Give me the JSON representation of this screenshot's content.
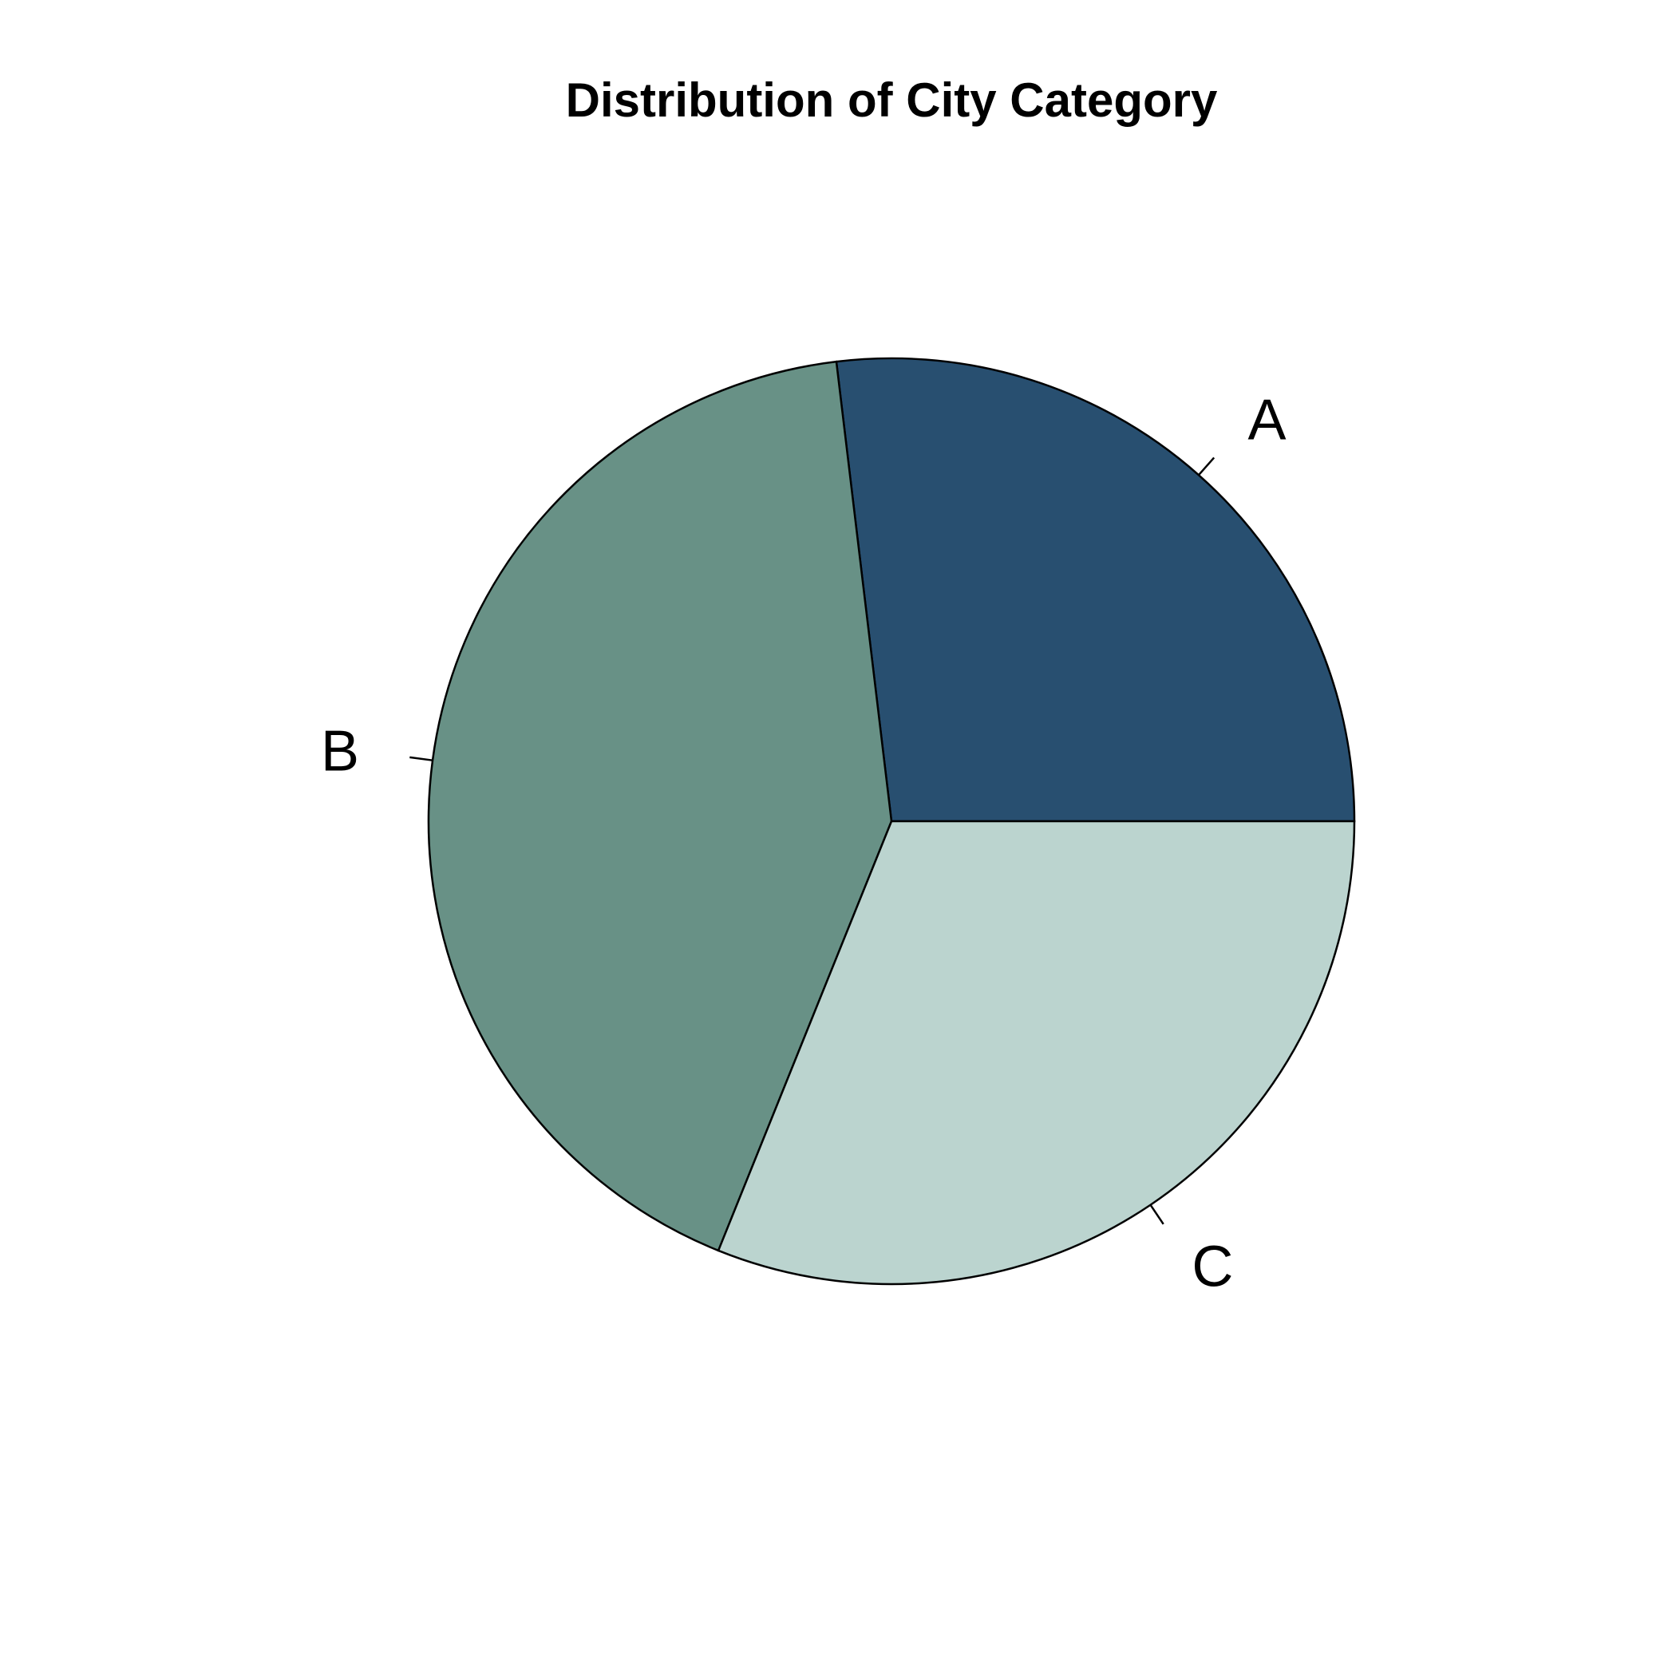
{
  "chart_data": {
    "type": "pie",
    "title": "Distribution of City Category",
    "categories": [
      "A",
      "B",
      "C"
    ],
    "values": [
      26.9,
      42.0,
      31.1
    ],
    "start_angle_deg": 0,
    "direction": "counterclockwise",
    "colors": [
      "#284F70",
      "#689186",
      "#BBD4CF"
    ],
    "outline_color": "#000000",
    "legend": "none"
  }
}
